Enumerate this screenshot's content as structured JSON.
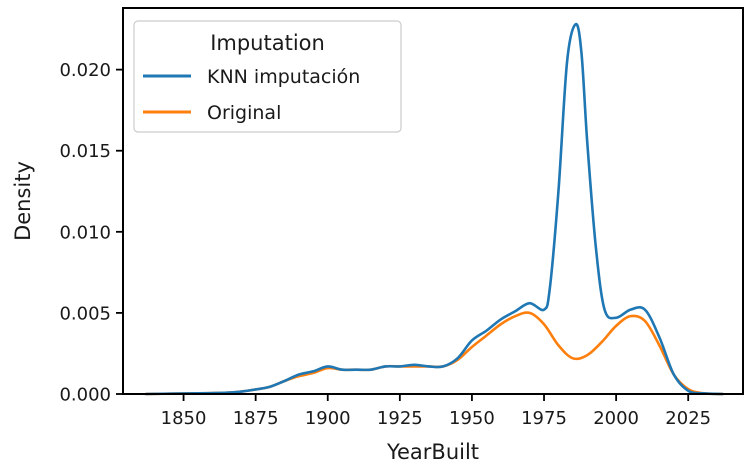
{
  "chart_data": {
    "type": "line",
    "title": "",
    "xlabel": "YearBuilt",
    "ylabel": "Density",
    "xlim": [
      1829,
      2044
    ],
    "ylim": [
      0,
      0.0238
    ],
    "xticks": [
      1850,
      1875,
      1900,
      1925,
      1950,
      1975,
      2000,
      2025
    ],
    "xtick_labels": [
      "1850",
      "1875",
      "1900",
      "1925",
      "1950",
      "1975",
      "2000",
      "2025"
    ],
    "yticks": [
      0,
      0.005,
      0.01,
      0.015,
      0.02
    ],
    "ytick_labels": [
      "0.000",
      "0.005",
      "0.010",
      "0.015",
      "0.020"
    ],
    "grid": false,
    "legend": {
      "title": "Imputation",
      "position": "top-left"
    },
    "series": [
      {
        "name": "KNN imputación",
        "color": "#1f77b4",
        "points": [
          [
            1837,
            0
          ],
          [
            1845,
            2e-05
          ],
          [
            1855,
            4e-05
          ],
          [
            1865,
            8e-05
          ],
          [
            1870,
            0.00015
          ],
          [
            1875,
            0.00028
          ],
          [
            1880,
            0.00045
          ],
          [
            1885,
            0.0008
          ],
          [
            1890,
            0.0012
          ],
          [
            1895,
            0.0014
          ],
          [
            1900,
            0.0017
          ],
          [
            1905,
            0.0015
          ],
          [
            1910,
            0.0015
          ],
          [
            1915,
            0.0015
          ],
          [
            1920,
            0.0017
          ],
          [
            1925,
            0.0017
          ],
          [
            1930,
            0.0018
          ],
          [
            1935,
            0.0017
          ],
          [
            1940,
            0.0017
          ],
          [
            1945,
            0.0022
          ],
          [
            1950,
            0.0033
          ],
          [
            1955,
            0.0039
          ],
          [
            1960,
            0.0046
          ],
          [
            1965,
            0.0051
          ],
          [
            1970,
            0.0056
          ],
          [
            1975,
            0.0052
          ],
          [
            1977,
            0.0065
          ],
          [
            1980,
            0.0125
          ],
          [
            1983,
            0.0205
          ],
          [
            1986,
            0.0228
          ],
          [
            1988,
            0.021
          ],
          [
            1990,
            0.0155
          ],
          [
            1993,
            0.009
          ],
          [
            1996,
            0.0052
          ],
          [
            2000,
            0.0047
          ],
          [
            2005,
            0.0052
          ],
          [
            2010,
            0.0052
          ],
          [
            2015,
            0.0035
          ],
          [
            2020,
            0.0012
          ],
          [
            2025,
            0.0002
          ],
          [
            2030,
            4e-05
          ],
          [
            2037,
            0
          ]
        ]
      },
      {
        "name": "Original",
        "color": "#ff7f0e",
        "points": [
          [
            1837,
            0
          ],
          [
            1845,
            2e-05
          ],
          [
            1855,
            4e-05
          ],
          [
            1865,
            8e-05
          ],
          [
            1870,
            0.00015
          ],
          [
            1875,
            0.00028
          ],
          [
            1880,
            0.00045
          ],
          [
            1885,
            0.0008
          ],
          [
            1890,
            0.0011
          ],
          [
            1895,
            0.0013
          ],
          [
            1900,
            0.0016
          ],
          [
            1905,
            0.0015
          ],
          [
            1910,
            0.0015
          ],
          [
            1915,
            0.0015
          ],
          [
            1920,
            0.0017
          ],
          [
            1925,
            0.0017
          ],
          [
            1930,
            0.0017
          ],
          [
            1935,
            0.0017
          ],
          [
            1940,
            0.0017
          ],
          [
            1945,
            0.0021
          ],
          [
            1950,
            0.0029
          ],
          [
            1955,
            0.0036
          ],
          [
            1960,
            0.0043
          ],
          [
            1965,
            0.0048
          ],
          [
            1970,
            0.005
          ],
          [
            1975,
            0.0043
          ],
          [
            1980,
            0.003
          ],
          [
            1985,
            0.0022
          ],
          [
            1990,
            0.0024
          ],
          [
            1995,
            0.0032
          ],
          [
            2000,
            0.0042
          ],
          [
            2005,
            0.0048
          ],
          [
            2010,
            0.0045
          ],
          [
            2015,
            0.003
          ],
          [
            2020,
            0.0012
          ],
          [
            2025,
            0.0003
          ],
          [
            2030,
            5e-05
          ],
          [
            2037,
            0
          ]
        ]
      }
    ]
  }
}
